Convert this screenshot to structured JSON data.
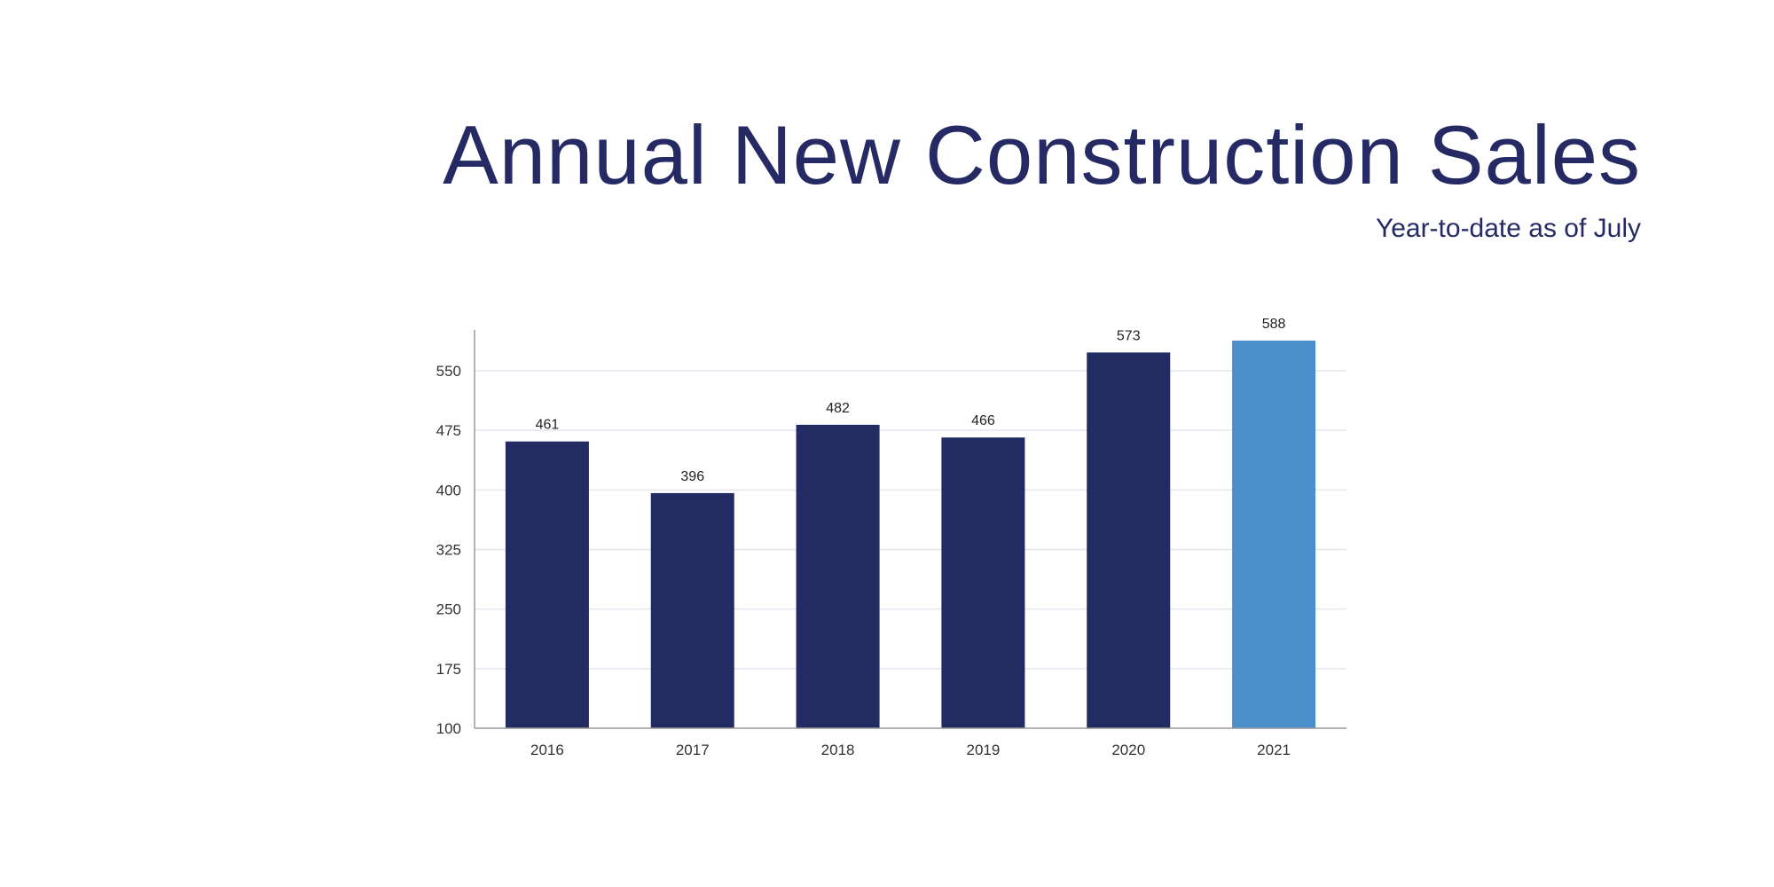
{
  "chart_data": {
    "type": "bar",
    "title": "Annual New Construction Sales",
    "subtitle": "Year-to-date as of July",
    "categories": [
      "2016",
      "2017",
      "2018",
      "2019",
      "2020",
      "2021"
    ],
    "values": [
      461,
      396,
      482,
      466,
      573,
      588
    ],
    "data_labels": [
      "461",
      "396",
      "482",
      "466",
      "573",
      "588"
    ],
    "xlabel": "",
    "ylabel": "",
    "ylim": [
      100,
      625
    ],
    "yticks": [
      100,
      175,
      250,
      325,
      400,
      475,
      550
    ],
    "grid": true,
    "legend": "none",
    "colors": {
      "default": "#232b63",
      "highlight": "#4a8ecb",
      "highlight_category": "2021",
      "title": "#252a65",
      "grid": "#e3e6ef",
      "axis": "#999999"
    }
  }
}
